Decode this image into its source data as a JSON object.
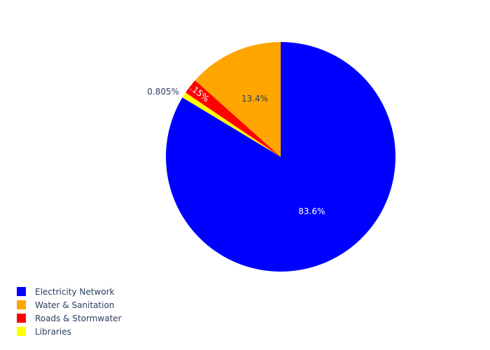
{
  "chart_data": {
    "type": "pie",
    "title": "",
    "slices": [
      {
        "label": "Electricity Network",
        "value": 83.6,
        "text": "83.6%",
        "color": "#0000ff"
      },
      {
        "label": "Libraries",
        "value": 0.805,
        "text": "0.805%",
        "color": "#ffff00"
      },
      {
        "label": "Roads & Stormwater",
        "value": 2.15,
        "text": "2.15%",
        "color": "#ff0000"
      },
      {
        "label": "Water & Sanitation",
        "value": 13.4,
        "text": "13.4%",
        "color": "#ffa500"
      }
    ],
    "legend": {
      "placement": "bottom-left",
      "items": [
        {
          "label": "Electricity Network",
          "color": "#0000ff"
        },
        {
          "label": "Water & Sanitation",
          "color": "#ffa500"
        },
        {
          "label": "Roads & Stormwater",
          "color": "#ff0000"
        },
        {
          "label": "Libraries",
          "color": "#ffff00"
        }
      ]
    }
  }
}
